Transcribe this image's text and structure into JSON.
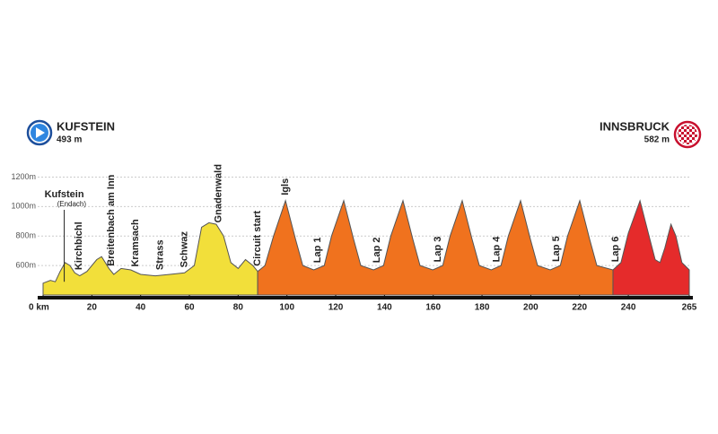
{
  "chart_data": {
    "type": "area",
    "start": {
      "name": "KUFSTEIN",
      "elevation": "493 m"
    },
    "finish": {
      "name": "INNSBRUCK",
      "elevation": "582 m"
    },
    "xlim": [
      0,
      265
    ],
    "ylim": [
      400,
      1300
    ],
    "xticks": [
      {
        "value": 0,
        "label": "0 km"
      },
      20,
      40,
      60,
      80,
      100,
      120,
      140,
      160,
      180,
      200,
      220,
      240,
      265
    ],
    "yticks": [
      {
        "value": 600,
        "label": "600m"
      },
      {
        "value": 800,
        "label": "800m"
      },
      {
        "value": 1000,
        "label": "1000m"
      },
      {
        "value": 1200,
        "label": "1200m"
      }
    ],
    "grid": true,
    "series": [
      {
        "color": "#f2df3a",
        "x": [
          0,
          3,
          5,
          7,
          9,
          11,
          13,
          15,
          18,
          22,
          24,
          27,
          29,
          32,
          36,
          40,
          46,
          52,
          58,
          62,
          65,
          68,
          71,
          74,
          77,
          80,
          83,
          86,
          88
        ],
        "values": [
          480,
          500,
          490,
          560,
          620,
          600,
          550,
          530,
          560,
          640,
          660,
          580,
          540,
          580,
          570,
          540,
          530,
          540,
          550,
          600,
          860,
          890,
          880,
          800,
          620,
          580,
          640,
          600,
          560
        ]
      },
      {
        "color": "#f0721e",
        "x": [
          88,
          91,
          94.5,
          99.4,
          103.5,
          106.5,
          111,
          115.3,
          118.3,
          123.3,
          127.3,
          130.3,
          135.5,
          139.6,
          142.6,
          147.6,
          151.6,
          154.6,
          159.8,
          163.9,
          166.9,
          171.9,
          175.9,
          178.9,
          183.8,
          187.8,
          190.8,
          195.8,
          199.8,
          202.8,
          208,
          212.1,
          215.1,
          220.1,
          224.1,
          227.1,
          233.7
        ],
        "values": [
          560,
          600,
          800,
          1040,
          780,
          600,
          570,
          600,
          800,
          1040,
          780,
          600,
          570,
          600,
          800,
          1040,
          780,
          600,
          570,
          600,
          800,
          1040,
          780,
          600,
          570,
          600,
          800,
          1040,
          780,
          600,
          570,
          600,
          800,
          1040,
          780,
          600,
          570
        ]
      },
      {
        "color": "#e52b2b",
        "x": [
          233.7,
          237,
          240,
          244.8,
          248.5,
          251,
          253,
          255,
          257.5,
          259.5,
          262,
          265
        ],
        "values": [
          570,
          620,
          820,
          1040,
          800,
          640,
          620,
          720,
          880,
          800,
          620,
          570
        ]
      }
    ],
    "annotations": [
      {
        "text": "Kirchbichl",
        "x": 14.7
      },
      {
        "text": "Breitenbach am Inn",
        "x": 28
      },
      {
        "text": "Kramsach",
        "x": 38
      },
      {
        "text": "Strass",
        "x": 48
      },
      {
        "text": "Schwaz",
        "x": 58
      },
      {
        "text": "Gnadenwald",
        "x": 72
      },
      {
        "text": "Circuit start",
        "x": 88
      },
      {
        "text": "Igls",
        "x": 99.4
      },
      {
        "text": "Lap 1",
        "x": 112.6
      },
      {
        "text": "Lap 2",
        "x": 137
      },
      {
        "text": "Lap 3",
        "x": 162
      },
      {
        "text": "Lap 4",
        "x": 186
      },
      {
        "text": "Lap 5",
        "x": 210.5
      },
      {
        "text": "Lap 6",
        "x": 234.8
      }
    ],
    "start_label": {
      "text": "Kufstein",
      "subtext": "(Endach)",
      "x": 5
    }
  }
}
